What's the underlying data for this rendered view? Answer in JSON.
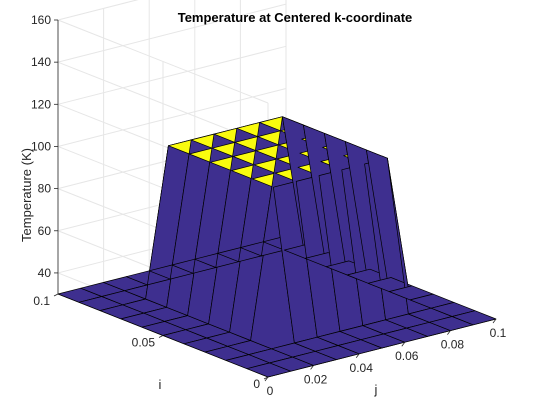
{
  "chart_data": {
    "type": "surface",
    "title": "Temperature at Centered k-coordinate",
    "xlabel": "j",
    "ylabel": "i",
    "zlabel": "Temperature (K)",
    "x": [
      0,
      0.01,
      0.02,
      0.03,
      0.04,
      0.05,
      0.06,
      0.07,
      0.08,
      0.09,
      0.1
    ],
    "y": [
      0,
      0.01,
      0.02,
      0.03,
      0.04,
      0.05,
      0.06,
      0.07,
      0.08,
      0.09,
      0.1
    ],
    "xlim": [
      0,
      0.1
    ],
    "ylim": [
      0,
      0.1
    ],
    "zlim": [
      30,
      160
    ],
    "xticks": [
      "0",
      "0.02",
      "0.04",
      "0.06",
      "0.08",
      "0.1"
    ],
    "yticks": [
      "0",
      "0.05",
      "0.1"
    ],
    "zticks": [
      "40",
      "60",
      "80",
      "100",
      "120",
      "140",
      "160"
    ],
    "z": [
      [
        30,
        30,
        30,
        30,
        30,
        30,
        30,
        30,
        30,
        30,
        30
      ],
      [
        30,
        30,
        30,
        30,
        30,
        30,
        30,
        30,
        30,
        30,
        30
      ],
      [
        30,
        30,
        30,
        30,
        30,
        30,
        30,
        30,
        30,
        30,
        30
      ],
      [
        30,
        30,
        30,
        100,
        100,
        100,
        100,
        100,
        100,
        30,
        30
      ],
      [
        30,
        30,
        30,
        100,
        100,
        100,
        100,
        100,
        100,
        30,
        30
      ],
      [
        30,
        30,
        30,
        100,
        100,
        100,
        100,
        100,
        100,
        30,
        30
      ],
      [
        30,
        30,
        30,
        100,
        100,
        100,
        100,
        100,
        100,
        30,
        30
      ],
      [
        30,
        30,
        30,
        100,
        100,
        100,
        100,
        100,
        100,
        30,
        30
      ],
      [
        30,
        30,
        30,
        100,
        100,
        100,
        100,
        100,
        100,
        30,
        30
      ],
      [
        30,
        30,
        30,
        30,
        30,
        30,
        30,
        30,
        30,
        30,
        30
      ],
      [
        30,
        30,
        30,
        30,
        30,
        30,
        30,
        30,
        30,
        30,
        30
      ]
    ],
    "colors": {
      "low": "#3e2f8f",
      "high": "#f9fb0e",
      "edge": "#000000"
    },
    "grid": true
  }
}
